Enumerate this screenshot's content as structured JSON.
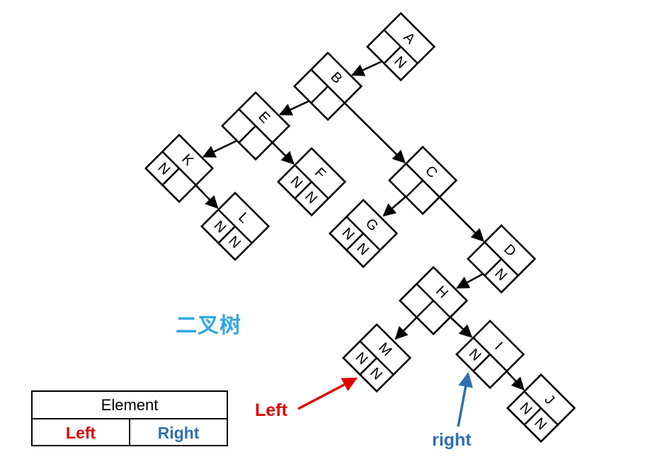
{
  "title": "二叉树",
  "legend": {
    "header": "Element",
    "left_label": "Left",
    "right_label": "Right",
    "left_color": "#e00000",
    "right_color": "#3070b0"
  },
  "callouts": {
    "left": "Left",
    "right": "right"
  },
  "null_marker": "N",
  "nodes": [
    {
      "id": "A",
      "left": "",
      "right": "N"
    },
    {
      "id": "B",
      "left": "",
      "right": ""
    },
    {
      "id": "C",
      "left": "",
      "right": ""
    },
    {
      "id": "D",
      "left": "",
      "right": "N"
    },
    {
      "id": "E",
      "left": "",
      "right": ""
    },
    {
      "id": "F",
      "left": "N",
      "right": "N"
    },
    {
      "id": "G",
      "left": "N",
      "right": "N"
    },
    {
      "id": "H",
      "left": "",
      "right": ""
    },
    {
      "id": "I",
      "left": "N",
      "right": ""
    },
    {
      "id": "J",
      "left": "N",
      "right": "N"
    },
    {
      "id": "K",
      "left": "N",
      "right": ""
    },
    {
      "id": "L",
      "left": "N",
      "right": "N"
    },
    {
      "id": "M",
      "left": "N",
      "right": "N"
    }
  ],
  "edges": [
    {
      "from": "A",
      "to": "B",
      "side": "left"
    },
    {
      "from": "B",
      "to": "E",
      "side": "left"
    },
    {
      "from": "B",
      "to": "C",
      "side": "right"
    },
    {
      "from": "E",
      "to": "K",
      "side": "left"
    },
    {
      "from": "E",
      "to": "F",
      "side": "right"
    },
    {
      "from": "K",
      "to": "L",
      "side": "right"
    },
    {
      "from": "C",
      "to": "G",
      "side": "left"
    },
    {
      "from": "C",
      "to": "D",
      "side": "right"
    },
    {
      "from": "D",
      "to": "H",
      "side": "left"
    },
    {
      "from": "H",
      "to": "M",
      "side": "left"
    },
    {
      "from": "H",
      "to": "I",
      "side": "right"
    },
    {
      "from": "I",
      "to": "J",
      "side": "right"
    }
  ]
}
